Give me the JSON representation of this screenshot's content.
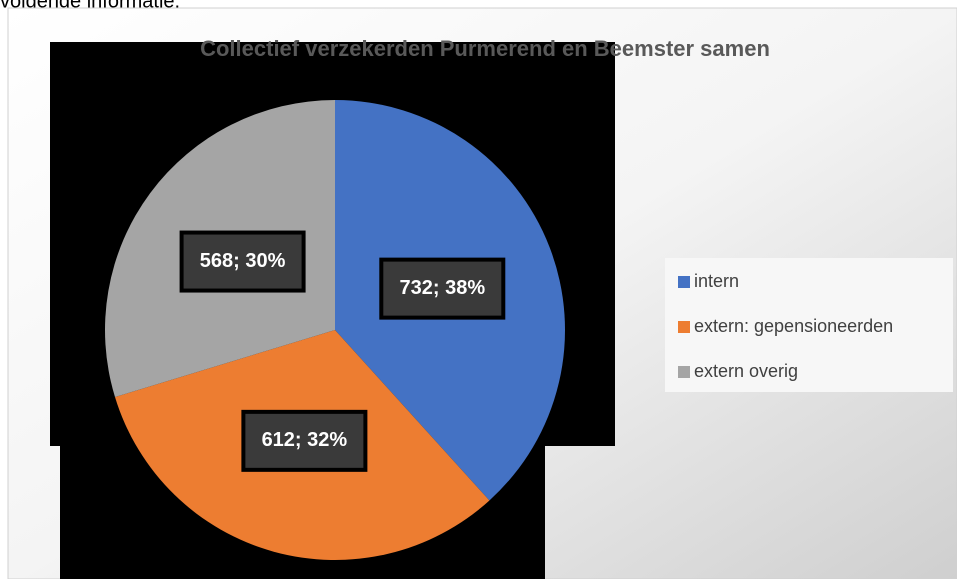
{
  "intro_text": "volgende informatie:",
  "chart_data": {
    "type": "pie",
    "title": "Collectief verzekerden Purmerend en Beemster samen",
    "categories": [
      "intern",
      "extern: gepensioneerden",
      "extern overig"
    ],
    "values": [
      732,
      612,
      568
    ],
    "value_labels": [
      "732; 38%",
      "612; 32%",
      "568; 30%"
    ],
    "colors": [
      "#4472c4",
      "#ed7d31",
      "#a5a5a5"
    ],
    "legend": "right"
  }
}
